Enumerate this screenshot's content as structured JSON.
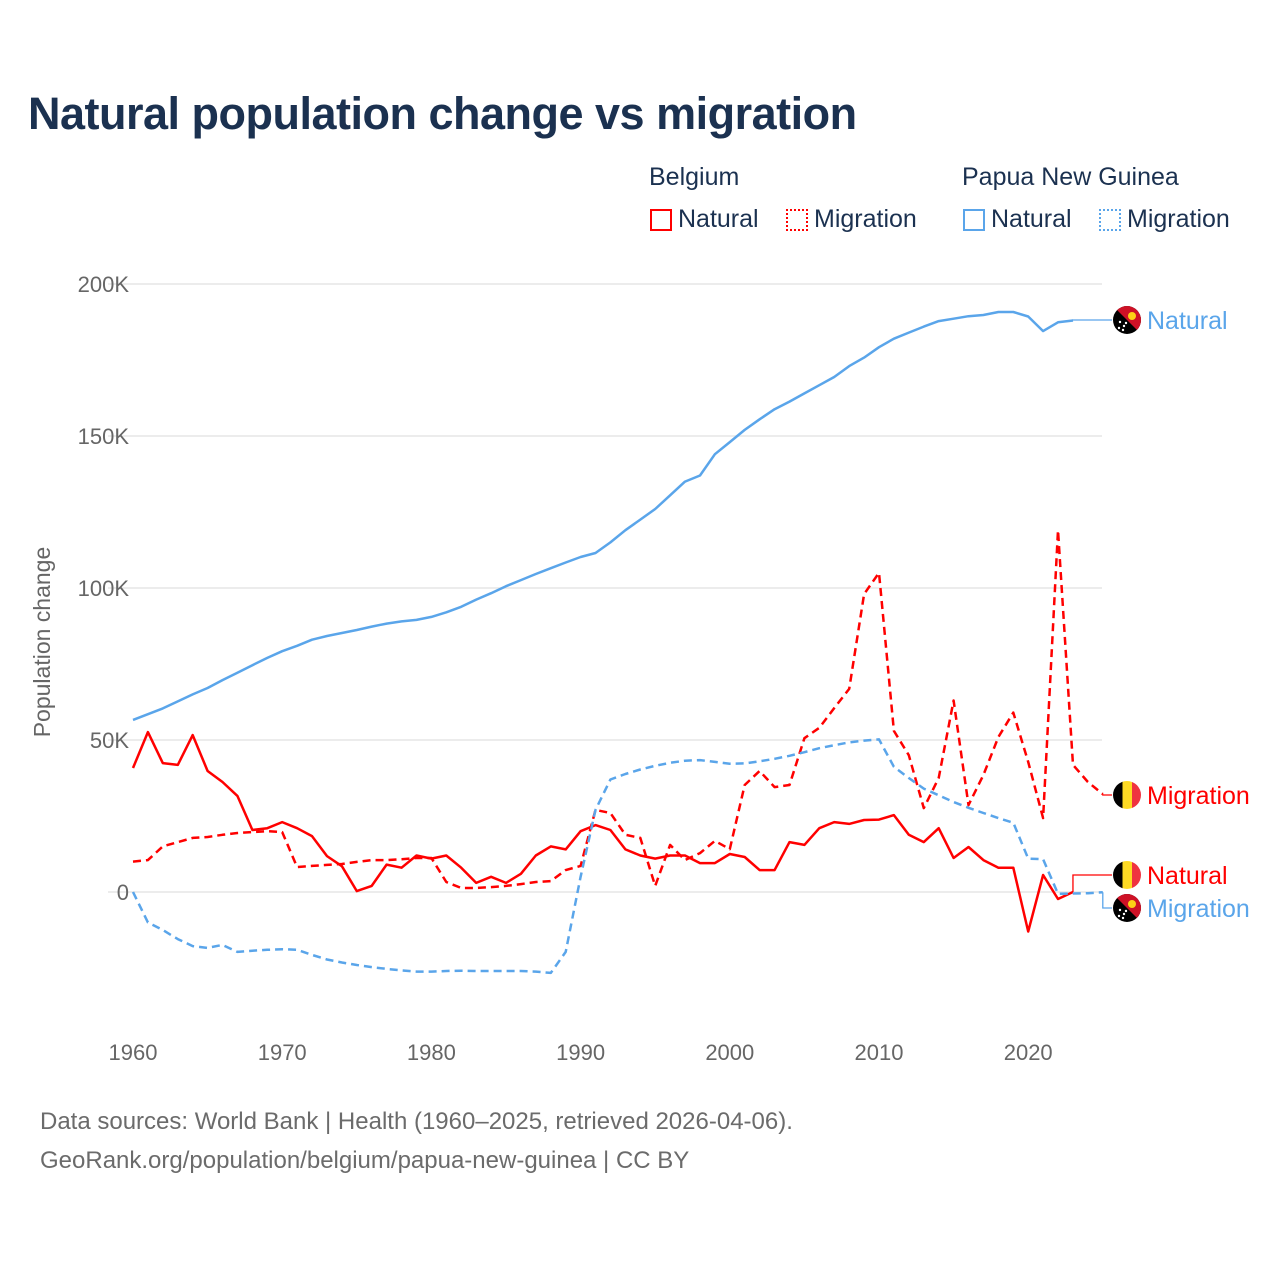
{
  "title": "Natural population change vs migration",
  "legend": {
    "groups": [
      {
        "name": "Belgium",
        "items": [
          {
            "label": "Natural",
            "style": "solid",
            "color": "#ff0000"
          },
          {
            "label": "Migration",
            "style": "dotted",
            "color": "#ff0000"
          }
        ]
      },
      {
        "name": "Papua New Guinea",
        "items": [
          {
            "label": "Natural",
            "style": "solid",
            "color": "#5aa5ea"
          },
          {
            "label": "Migration",
            "style": "dotted",
            "color": "#5aa5ea"
          }
        ]
      }
    ]
  },
  "footer": {
    "line1": "Data sources: World Bank | Health (1960–2025, retrieved 2026-04-06).",
    "line2": "GeoRank.org/population/belgium/papua-new-guinea | CC BY"
  },
  "chart_data": {
    "type": "line",
    "title": "Natural population change vs migration",
    "ylabel": "Population change",
    "xlabel": "",
    "xlim": [
      1960,
      2025
    ],
    "ylim": [
      -40000,
      200000
    ],
    "x_ticks": [
      1960,
      1970,
      1980,
      1990,
      2000,
      2010,
      2020
    ],
    "x_tick_labels": [
      "1960",
      "1970",
      "1980",
      "1990",
      "2000",
      "2010",
      "2020"
    ],
    "y_ticks": [
      0,
      50000,
      100000,
      150000,
      200000
    ],
    "y_tick_labels": [
      "0",
      "50K",
      "100K",
      "150K",
      "200K"
    ],
    "grid": true,
    "start_year": 1960,
    "series": [
      {
        "name": "Belgium Natural",
        "end_label": "Natural",
        "country": "Belgium",
        "color": "#ff0000",
        "dash": false,
        "values": [
          40800,
          52600,
          42400,
          41800,
          51600,
          39800,
          36200,
          31600,
          20400,
          21000,
          23000,
          21000,
          18400,
          11800,
          8500,
          300,
          2000,
          9000,
          8000,
          12000,
          11000,
          12000,
          8000,
          3000,
          5000,
          3000,
          6000,
          12000,
          15000,
          14000,
          20000,
          22000,
          20400,
          14000,
          12000,
          11000,
          12000,
          12000,
          9500,
          9500,
          12500,
          11500,
          7200,
          7200,
          16400,
          15500,
          21000,
          23000,
          22400,
          23700,
          23800,
          25300,
          18800,
          16400,
          21000,
          11200,
          14800,
          10500,
          8000,
          8000,
          -13000,
          5600,
          -2300,
          0
        ]
      },
      {
        "name": "Belgium Migration",
        "end_label": "Migration",
        "country": "Belgium",
        "color": "#ff0000",
        "dash": true,
        "values": [
          10000,
          10500,
          15000,
          16400,
          17800,
          18100,
          18800,
          19400,
          19700,
          20000,
          19700,
          8200,
          8600,
          8900,
          9200,
          9900,
          10500,
          10500,
          10800,
          11200,
          11200,
          3300,
          1300,
          1300,
          1600,
          2000,
          2600,
          3300,
          3600,
          7200,
          8600,
          27000,
          26000,
          18800,
          17800,
          2000,
          15500,
          10500,
          12800,
          16800,
          14100,
          35200,
          39800,
          34500,
          35200,
          50600,
          54000,
          60500,
          66800,
          98000,
          105000,
          53000,
          45000,
          27600,
          37500,
          63000,
          28600,
          38500,
          51000,
          59000,
          42800,
          24300,
          119000,
          41800,
          36200,
          32200
        ]
      },
      {
        "name": "Papua New Guinea Natural",
        "end_label": "Natural",
        "country": "Papua New Guinea",
        "color": "#5aa5ea",
        "dash": false,
        "values": [
          56600,
          58500,
          60400,
          62700,
          65000,
          67100,
          69700,
          72100,
          74600,
          77000,
          79200,
          81000,
          83000,
          84200,
          85200,
          86200,
          87300,
          88300,
          89000,
          89500,
          90500,
          92000,
          93800,
          96200,
          98300,
          100600,
          102600,
          104600,
          106500,
          108400,
          110200,
          111500,
          115000,
          119000,
          122500,
          126000,
          130500,
          135000,
          137000,
          144000,
          148000,
          152000,
          155500,
          158800,
          161300,
          164000,
          166700,
          169400,
          173000,
          175800,
          179200,
          182000,
          184000,
          186000,
          187800,
          188600,
          189400,
          189800,
          190800,
          190800,
          189300,
          184500,
          187400,
          188000
        ]
      },
      {
        "name": "Papua New Guinea Migration",
        "end_label": "Migration",
        "country": "Papua New Guinea",
        "color": "#5aa5ea",
        "dash": true,
        "values": [
          0,
          -10000,
          -12500,
          -15500,
          -17800,
          -18400,
          -17400,
          -19700,
          -19300,
          -19000,
          -18800,
          -19000,
          -20700,
          -22200,
          -23200,
          -24000,
          -24700,
          -25300,
          -25800,
          -26200,
          -26200,
          -26000,
          -25900,
          -26000,
          -26000,
          -26000,
          -26000,
          -26200,
          -26600,
          -19700,
          5000,
          27000,
          37000,
          38800,
          40300,
          41500,
          42500,
          43200,
          43400,
          42800,
          42200,
          42300,
          43000,
          43800,
          44800,
          46000,
          47300,
          48300,
          49200,
          49800,
          50200,
          41200,
          37500,
          34000,
          31800,
          29600,
          27700,
          26000,
          24300,
          22800,
          11000,
          10800,
          -600,
          -500,
          -400,
          -100
        ]
      }
    ]
  }
}
